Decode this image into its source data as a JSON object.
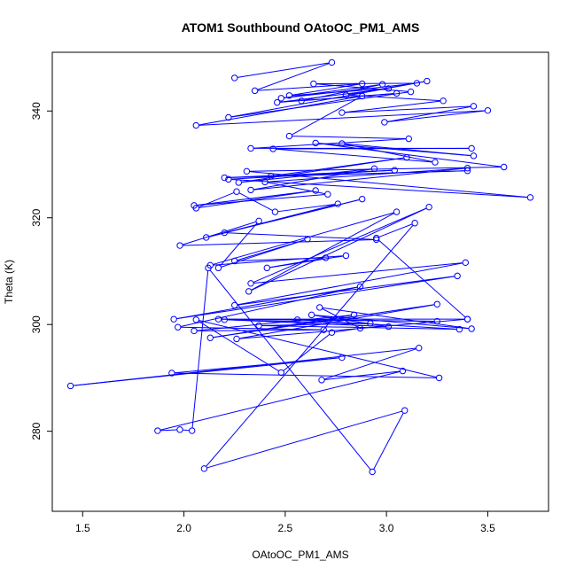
{
  "chart_data": {
    "type": "line",
    "title": "ATOM1 Southbound OAtoOC_PM1_AMS",
    "xlabel": "OAtoOC_PM1_AMS",
    "ylabel": "Theta (K)",
    "xlim": [
      1.35,
      3.8
    ],
    "ylim": [
      265,
      351
    ],
    "xticks": [
      1.5,
      2.0,
      2.5,
      3.0,
      3.5
    ],
    "yticks": [
      280,
      300,
      320,
      340
    ],
    "xtick_labels": [
      "1.5",
      "2.0",
      "2.5",
      "3.0",
      "3.5"
    ],
    "ytick_labels": [
      "280",
      "300",
      "320",
      "340"
    ],
    "grid": false,
    "color": "#0000ff",
    "points": [
      [
        2.25,
        346.2
      ],
      [
        2.73,
        349.1
      ],
      [
        2.35,
        343.8
      ],
      [
        2.88,
        345.1
      ],
      [
        2.52,
        342.9
      ],
      [
        3.01,
        344.2
      ],
      [
        2.46,
        341.6
      ],
      [
        3.05,
        343.3
      ],
      [
        2.58,
        341.9
      ],
      [
        2.98,
        345.0
      ],
      [
        2.48,
        342.4
      ],
      [
        3.15,
        345.2
      ],
      [
        2.64,
        345.1
      ],
      [
        3.12,
        343.6
      ],
      [
        2.22,
        338.8
      ],
      [
        3.2,
        345.6
      ],
      [
        2.8,
        343.0
      ],
      [
        3.28,
        341.9
      ],
      [
        2.78,
        339.7
      ],
      [
        3.43,
        340.9
      ],
      [
        2.99,
        337.9
      ],
      [
        3.5,
        340.1
      ],
      [
        2.06,
        337.3
      ],
      [
        2.88,
        342.8
      ],
      [
        2.52,
        335.3
      ],
      [
        3.11,
        334.8
      ],
      [
        2.33,
        333.0
      ],
      [
        3.42,
        333.0
      ],
      [
        2.44,
        332.9
      ],
      [
        3.24,
        330.4
      ],
      [
        2.78,
        333.9
      ],
      [
        3.43,
        331.6
      ],
      [
        2.65,
        334.0
      ],
      [
        3.58,
        329.5
      ],
      [
        2.31,
        328.7
      ],
      [
        3.71,
        323.8
      ],
      [
        2.22,
        327.2
      ],
      [
        3.04,
        328.9
      ],
      [
        2.2,
        327.5
      ],
      [
        3.4,
        328.8
      ],
      [
        2.43,
        327.8
      ],
      [
        3.1,
        331.3
      ],
      [
        2.27,
        326.6
      ],
      [
        2.94,
        329.2
      ],
      [
        2.33,
        325.2
      ],
      [
        3.4,
        329.3
      ],
      [
        2.4,
        326.7
      ],
      [
        2.71,
        324.4
      ],
      [
        2.05,
        322.3
      ],
      [
        2.65,
        325.1
      ],
      [
        2.06,
        321.8
      ],
      [
        2.26,
        324.9
      ],
      [
        2.45,
        321.1
      ],
      [
        2.76,
        322.6
      ],
      [
        2.11,
        316.3
      ],
      [
        2.88,
        323.5
      ],
      [
        2.2,
        317.2
      ],
      [
        2.95,
        315.9
      ],
      [
        1.98,
        314.8
      ],
      [
        2.37,
        319.4
      ],
      [
        2.17,
        310.6
      ],
      [
        2.61,
        316.0
      ],
      [
        2.25,
        311.9
      ],
      [
        2.7,
        312.5
      ],
      [
        2.41,
        310.6
      ],
      [
        2.8,
        312.9
      ],
      [
        2.13,
        311.1
      ],
      [
        3.05,
        321.1
      ],
      [
        2.32,
        306.2
      ],
      [
        3.21,
        322.0
      ],
      [
        2.33,
        307.7
      ],
      [
        3.39,
        311.6
      ],
      [
        2.25,
        303.6
      ],
      [
        3.35,
        309.1
      ],
      [
        1.95,
        301.0
      ],
      [
        2.87,
        307.1
      ],
      [
        1.97,
        299.5
      ],
      [
        2.69,
        299.0
      ],
      [
        2.05,
        298.8
      ],
      [
        2.84,
        301.8
      ],
      [
        2.13,
        297.5
      ],
      [
        3.25,
        303.8
      ],
      [
        2.26,
        297.3
      ],
      [
        3.4,
        301.0
      ],
      [
        2.17,
        301.0
      ],
      [
        3.25,
        300.6
      ],
      [
        2.56,
        300.9
      ],
      [
        3.36,
        299.1
      ],
      [
        2.37,
        299.8
      ],
      [
        2.92,
        300.2
      ],
      [
        2.2,
        300.9
      ],
      [
        3.01,
        299.6
      ],
      [
        2.63,
        301.8
      ],
      [
        3.42,
        299.2
      ],
      [
        2.67,
        303.2
      ],
      [
        2.87,
        299.3
      ],
      [
        2.73,
        298.5
      ],
      [
        2.48,
        291.0
      ],
      [
        2.06,
        300.9
      ],
      [
        3.26,
        290.0
      ],
      [
        1.94,
        290.9
      ],
      [
        2.78,
        293.8
      ],
      [
        1.44,
        288.5
      ],
      [
        3.16,
        295.6
      ],
      [
        2.68,
        289.6
      ],
      [
        3.08,
        291.3
      ],
      [
        1.87,
        280.1
      ],
      [
        1.98,
        280.3
      ],
      [
        2.04,
        280.1
      ],
      [
        2.12,
        310.6
      ],
      [
        2.93,
        272.4
      ],
      [
        3.09,
        283.9
      ],
      [
        2.1,
        273.0
      ],
      [
        3.14,
        319.0
      ],
      [
        2.95,
        316.2
      ],
      [
        3.4,
        301.0
      ]
    ]
  }
}
